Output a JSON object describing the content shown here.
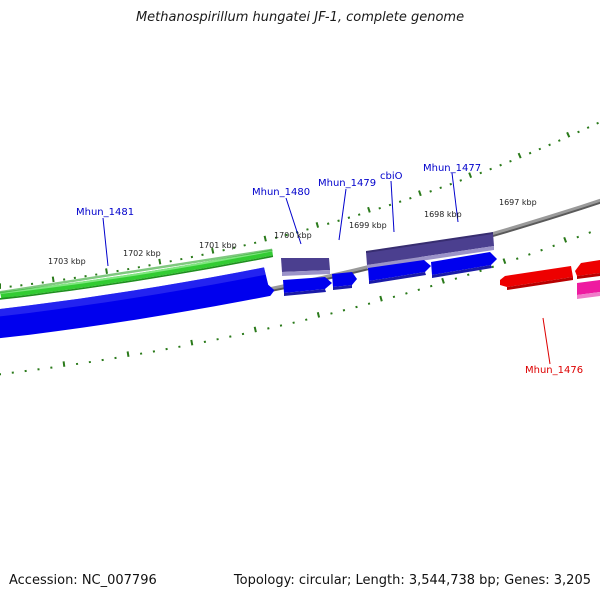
{
  "title": "Methanospirillum hungatei JF-1, complete genome",
  "footer": {
    "accession": "Accession: NC_007796",
    "stats": "Topology: circular; Length: 3,544,738 bp; Genes: 3,205"
  },
  "colors": {
    "tick": "#2a7a1a",
    "backbone": "#808080",
    "green_gene": "#33cc33",
    "blue_gene": "#0000ee",
    "purple_gene": "#4b3f8f",
    "red_gene": "#ee0000",
    "magenta_gene": "#ee1aa0",
    "label_blue": "#0000cc",
    "label_red": "#dd0000",
    "kbp_text": "#222222"
  },
  "kbp_labels": [
    "1703 kbp",
    "1702 kbp",
    "1701 kbp",
    "1700 kbp",
    "1699 kbp",
    "1698 kbp",
    "1697 kbp"
  ],
  "gene_labels": [
    "Mhun_1481",
    "Mhun_1480",
    "Mhun_1479",
    "cbiO",
    "Mhun_1477",
    "Mhun_1476"
  ]
}
